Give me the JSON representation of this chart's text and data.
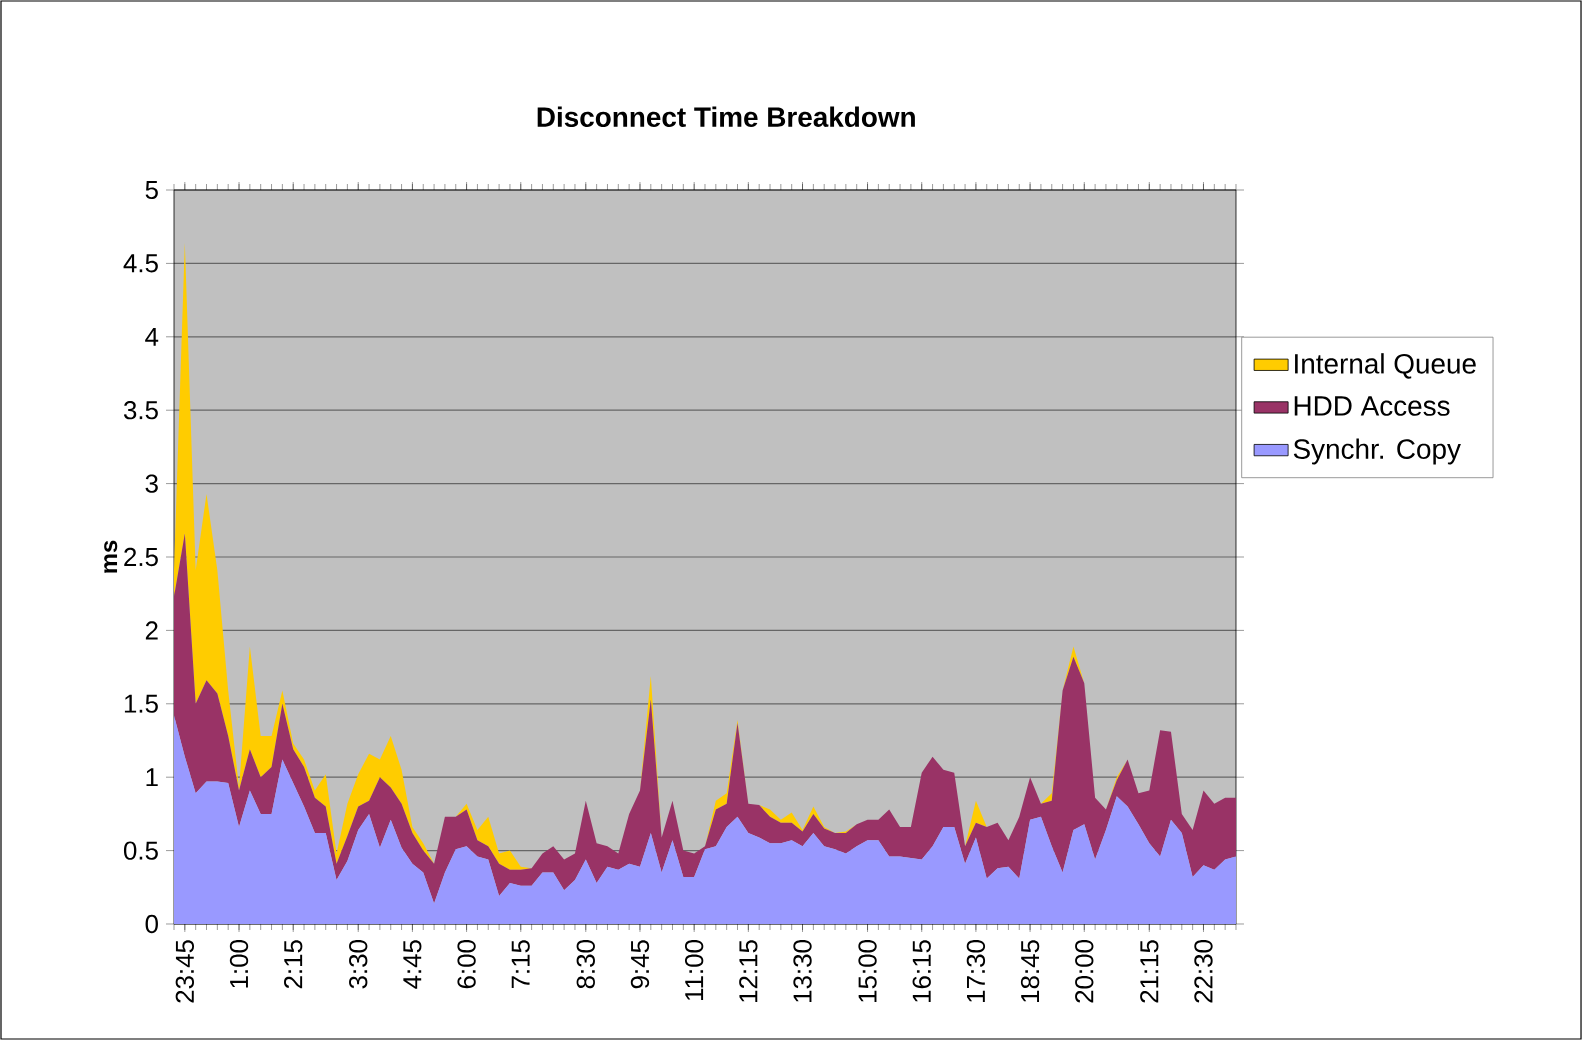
{
  "chart_data": {
    "type": "area",
    "stacked": true,
    "title": "Disconnect Time Breakdown",
    "ylabel": "ms",
    "categories": [
      null,
      "23:45",
      null,
      null,
      null,
      null,
      "1:00",
      null,
      null,
      null,
      null,
      "2:15",
      null,
      null,
      null,
      null,
      null,
      "3:30",
      null,
      null,
      null,
      null,
      "4:45",
      null,
      null,
      null,
      null,
      "6:00",
      null,
      null,
      null,
      null,
      "7:15",
      null,
      null,
      null,
      null,
      null,
      "8:30",
      null,
      null,
      null,
      null,
      "9:45",
      null,
      null,
      null,
      null,
      "11:00",
      null,
      null,
      null,
      null,
      "12:15",
      null,
      null,
      null,
      null,
      "13:30",
      null,
      null,
      null,
      null,
      null,
      "15:00",
      null,
      null,
      null,
      null,
      "16:15",
      null,
      null,
      null,
      null,
      "17:30",
      null,
      null,
      null,
      null,
      "18:45",
      null,
      null,
      null,
      null,
      "20:00",
      null,
      null,
      null,
      null,
      null,
      "21:15",
      null,
      null,
      null,
      null,
      "22:30",
      null,
      null,
      null
    ],
    "series": [
      {
        "name": "Synchr. Copy",
        "color": "#9999ff",
        "values": [
          1.42,
          1.14,
          0.89,
          0.97,
          0.97,
          0.96,
          0.66,
          0.91,
          0.75,
          0.75,
          1.12,
          0.96,
          0.8,
          0.62,
          0.62,
          0.3,
          0.43,
          0.64,
          0.75,
          0.52,
          0.71,
          0.52,
          0.41,
          0.35,
          0.14,
          0.35,
          0.51,
          0.53,
          0.46,
          0.44,
          0.19,
          0.28,
          0.26,
          0.26,
          0.35,
          0.35,
          0.23,
          0.3,
          0.44,
          0.28,
          0.39,
          0.37,
          0.41,
          0.39,
          0.62,
          0.35,
          0.57,
          0.32,
          0.32,
          0.51,
          0.53,
          0.66,
          0.73,
          0.62,
          0.59,
          0.55,
          0.55,
          0.57,
          0.53,
          0.62,
          0.53,
          0.51,
          0.48,
          0.53,
          0.57,
          0.57,
          0.46,
          0.46,
          0.45,
          0.44,
          0.53,
          0.66,
          0.66,
          0.41,
          0.59,
          0.31,
          0.38,
          0.39,
          0.31,
          0.71,
          0.73,
          0.53,
          0.35,
          0.64,
          0.68,
          0.44,
          0.64,
          0.87,
          0.8,
          0.68,
          0.55,
          0.46,
          0.71,
          0.62,
          0.32,
          0.4,
          0.37,
          0.44,
          0.46
        ]
      },
      {
        "name": "HDD Access",
        "color": "#993366",
        "values": [
          0.81,
          1.52,
          0.61,
          0.69,
          0.6,
          0.32,
          0.25,
          0.28,
          0.25,
          0.32,
          0.38,
          0.23,
          0.27,
          0.24,
          0.18,
          0.11,
          0.17,
          0.16,
          0.09,
          0.48,
          0.22,
          0.3,
          0.21,
          0.15,
          0.27,
          0.38,
          0.22,
          0.25,
          0.11,
          0.09,
          0.22,
          0.09,
          0.11,
          0.12,
          0.13,
          0.18,
          0.21,
          0.18,
          0.4,
          0.27,
          0.14,
          0.11,
          0.34,
          0.52,
          0.91,
          0.24,
          0.27,
          0.18,
          0.16,
          0.02,
          0.25,
          0.16,
          0.64,
          0.2,
          0.22,
          0.18,
          0.14,
          0.12,
          0.1,
          0.13,
          0.12,
          0.11,
          0.14,
          0.15,
          0.14,
          0.14,
          0.32,
          0.2,
          0.21,
          0.59,
          0.61,
          0.39,
          0.37,
          0.12,
          0.1,
          0.35,
          0.31,
          0.18,
          0.42,
          0.29,
          0.09,
          0.31,
          1.24,
          1.18,
          0.96,
          0.42,
          0.14,
          0.11,
          0.32,
          0.21,
          0.36,
          0.86,
          0.6,
          0.13,
          0.32,
          0.51,
          0.45,
          0.42,
          0.4
        ]
      },
      {
        "name": "Internal Queue",
        "color": "#ffcc00",
        "values": [
          0.18,
          1.98,
          0.91,
          1.27,
          0.84,
          0.31,
          0.02,
          0.7,
          0.28,
          0.21,
          0.09,
          0.04,
          0.05,
          0.05,
          0.22,
          0.07,
          0.22,
          0.22,
          0.32,
          0.12,
          0.35,
          0.23,
          0.04,
          0.05,
          0,
          0,
          0,
          0.04,
          0.07,
          0.2,
          0.07,
          0.13,
          0.02,
          0,
          0,
          0,
          0,
          0,
          0,
          0,
          0,
          0,
          0,
          0,
          0.16,
          0,
          0,
          0,
          0,
          0,
          0.06,
          0.07,
          0.02,
          0,
          0,
          0.05,
          0.02,
          0.07,
          0.01,
          0.05,
          0.01,
          0,
          0.01,
          0,
          0,
          0,
          0,
          0,
          0,
          0,
          0,
          0,
          0,
          0,
          0.15,
          0,
          0,
          0,
          0,
          0,
          0,
          0.05,
          0,
          0.07,
          0,
          0,
          0,
          0.02,
          0,
          0,
          0,
          0,
          0,
          0,
          0,
          0,
          0,
          0,
          0
        ]
      }
    ],
    "ylim": [
      0,
      5
    ],
    "yticks": [
      0,
      0.5,
      1,
      1.5,
      2,
      2.5,
      3,
      3.5,
      4,
      4.5,
      5
    ],
    "grid": "y",
    "legend": "right"
  }
}
